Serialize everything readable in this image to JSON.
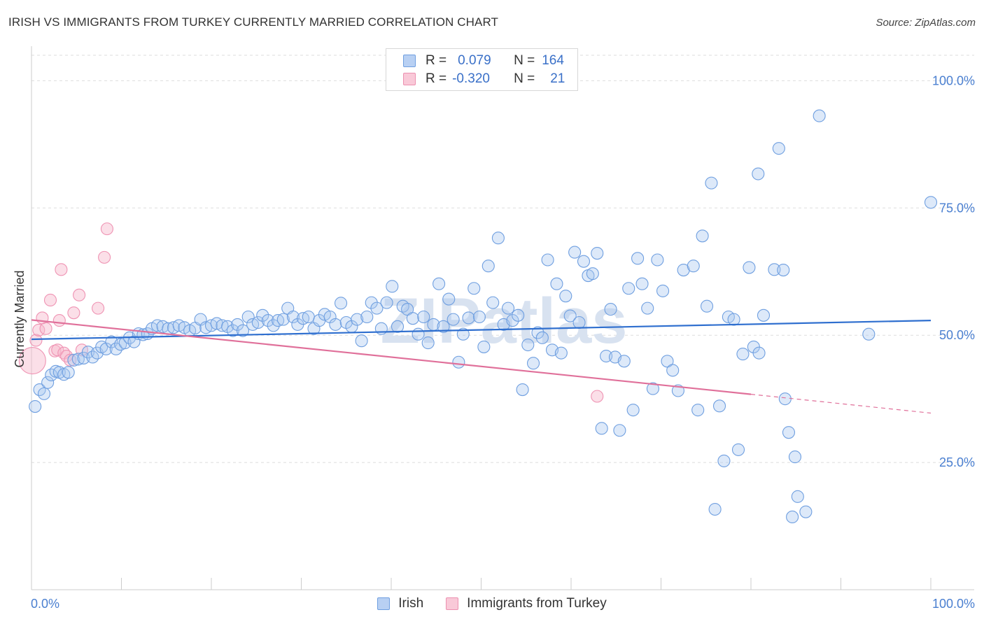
{
  "title": "IRISH VS IMMIGRANTS FROM TURKEY CURRENTLY MARRIED CORRELATION CHART",
  "source": "Source: ZipAtlas.com",
  "watermark": "ZIPatlas",
  "legend": {
    "r_label": "R =",
    "n_label": "N =",
    "irish": {
      "r": "0.079",
      "n": "164"
    },
    "turkey": {
      "r": "-0.320",
      "n": "21"
    }
  },
  "chart_data": {
    "type": "scatter",
    "title": "IRISH VS IMMIGRANTS FROM TURKEY CURRENTLY MARRIED CORRELATION CHART",
    "ylabel": "Currently Married",
    "xlabel": "",
    "xlim": [
      0,
      100
    ],
    "ylim": [
      0,
      105
    ],
    "x_tick_labels": [
      "0.0%",
      "100.0%"
    ],
    "y_ticks": [
      {
        "value": 25,
        "label": "25.0%"
      },
      {
        "value": 50,
        "label": "50.0%"
      },
      {
        "value": 75,
        "label": "75.0%"
      },
      {
        "value": 100,
        "label": "100.0%"
      }
    ],
    "grid": "horizontal dashed",
    "legend_position": "top-center",
    "colors": {
      "irish": "#8ab4e8",
      "irish_line": "#2f6fcf",
      "turkey": "#f4a8c0",
      "turkey_line": "#e0709a"
    },
    "series": [
      {
        "name": "Irish",
        "trend": {
          "x": [
            0,
            100
          ],
          "y": [
            49.2,
            52.9
          ]
        },
        "points": [
          [
            0.4,
            36
          ],
          [
            0.9,
            39.3
          ],
          [
            1.4,
            38.5
          ],
          [
            1.8,
            40.7
          ],
          [
            2.2,
            42.2
          ],
          [
            2.7,
            42.9
          ],
          [
            3.1,
            42.7
          ],
          [
            3.6,
            42.3
          ],
          [
            4.1,
            42.7
          ],
          [
            4.7,
            45.1
          ],
          [
            5.2,
            45.3
          ],
          [
            5.8,
            45.5
          ],
          [
            6.3,
            46.7
          ],
          [
            6.8,
            45.7
          ],
          [
            7.3,
            46.5
          ],
          [
            7.8,
            47.7
          ],
          [
            8.3,
            47.3
          ],
          [
            8.9,
            48.7
          ],
          [
            9.4,
            47.3
          ],
          [
            9.9,
            48.2
          ],
          [
            10.4,
            48.5
          ],
          [
            10.9,
            49.5
          ],
          [
            11.4,
            48.7
          ],
          [
            11.9,
            50.3
          ],
          [
            12.4,
            50.1
          ],
          [
            12.9,
            50.3
          ],
          [
            13.4,
            51.3
          ],
          [
            14,
            51.9
          ],
          [
            14.6,
            51.7
          ],
          [
            15.2,
            51.3
          ],
          [
            15.8,
            51.5
          ],
          [
            16.4,
            51.9
          ],
          [
            17,
            51.5
          ],
          [
            17.6,
            50.9
          ],
          [
            18.2,
            51.4
          ],
          [
            18.8,
            53.1
          ],
          [
            19.4,
            51.5
          ],
          [
            20,
            51.9
          ],
          [
            20.6,
            52.3
          ],
          [
            21.2,
            51.9
          ],
          [
            21.8,
            51.7
          ],
          [
            22.4,
            50.9
          ],
          [
            22.9,
            52.1
          ],
          [
            23.5,
            50.9
          ],
          [
            24.1,
            53.6
          ],
          [
            24.6,
            52.1
          ],
          [
            25.2,
            52.5
          ],
          [
            25.7,
            53.9
          ],
          [
            26.3,
            52.9
          ],
          [
            26.9,
            51.9
          ],
          [
            27.4,
            52.9
          ],
          [
            28,
            53.1
          ],
          [
            28.5,
            55.3
          ],
          [
            29.1,
            53.6
          ],
          [
            29.6,
            52.1
          ],
          [
            30.2,
            53.3
          ],
          [
            30.8,
            53.6
          ],
          [
            31.4,
            51.3
          ],
          [
            32,
            52.9
          ],
          [
            32.6,
            54.1
          ],
          [
            33.2,
            53.6
          ],
          [
            33.8,
            52.1
          ],
          [
            34.4,
            56.3
          ],
          [
            35,
            52.5
          ],
          [
            35.6,
            51.7
          ],
          [
            36.2,
            53.1
          ],
          [
            36.7,
            48.9
          ],
          [
            37.3,
            53.6
          ],
          [
            37.8,
            56.4
          ],
          [
            38.4,
            55.3
          ],
          [
            38.9,
            51.3
          ],
          [
            39.5,
            56.4
          ],
          [
            40.1,
            59.6
          ],
          [
            40.7,
            51.7
          ],
          [
            41.3,
            55.7
          ],
          [
            41.8,
            55.1
          ],
          [
            42.4,
            53.3
          ],
          [
            43,
            50.2
          ],
          [
            43.6,
            53.6
          ],
          [
            44.1,
            48.5
          ],
          [
            44.7,
            52.1
          ],
          [
            45.3,
            60.1
          ],
          [
            45.8,
            51.7
          ],
          [
            46.4,
            57.1
          ],
          [
            46.9,
            53.1
          ],
          [
            47.5,
            44.7
          ],
          [
            48,
            50.2
          ],
          [
            48.6,
            53.4
          ],
          [
            49.2,
            59.2
          ],
          [
            49.8,
            53.6
          ],
          [
            50.3,
            47.7
          ],
          [
            50.8,
            63.6
          ],
          [
            51.3,
            56.4
          ],
          [
            51.9,
            69.1
          ],
          [
            52.5,
            52.1
          ],
          [
            53,
            55.3
          ],
          [
            53.5,
            52.9
          ],
          [
            54.1,
            53.9
          ],
          [
            54.6,
            39.3
          ],
          [
            55.2,
            48.1
          ],
          [
            55.8,
            44.5
          ],
          [
            56.3,
            50.5
          ],
          [
            56.8,
            49.5
          ],
          [
            57.4,
            64.8
          ],
          [
            57.9,
            47.1
          ],
          [
            58.4,
            60.1
          ],
          [
            58.9,
            46.5
          ],
          [
            59.4,
            57.7
          ],
          [
            59.9,
            53.8
          ],
          [
            60.4,
            66.3
          ],
          [
            60.9,
            52.5
          ],
          [
            61.4,
            64.5
          ],
          [
            61.9,
            61.7
          ],
          [
            62.4,
            62.1
          ],
          [
            62.9,
            66.1
          ],
          [
            63.4,
            31.7
          ],
          [
            63.9,
            45.9
          ],
          [
            64.4,
            55.1
          ],
          [
            64.9,
            45.7
          ],
          [
            65.4,
            31.3
          ],
          [
            65.9,
            44.9
          ],
          [
            66.4,
            59.2
          ],
          [
            66.9,
            35.3
          ],
          [
            67.4,
            65.1
          ],
          [
            67.9,
            60.1
          ],
          [
            68.5,
            55.3
          ],
          [
            69.1,
            39.5
          ],
          [
            69.6,
            64.8
          ],
          [
            70.2,
            58.7
          ],
          [
            70.7,
            44.9
          ],
          [
            71.3,
            43.1
          ],
          [
            71.9,
            39.1
          ],
          [
            72.5,
            62.8
          ],
          [
            73.6,
            63.6
          ],
          [
            74.1,
            35.3
          ],
          [
            74.6,
            69.5
          ],
          [
            75.1,
            55.7
          ],
          [
            75.6,
            79.9
          ],
          [
            76,
            15.8
          ],
          [
            76.5,
            36.1
          ],
          [
            77,
            25.3
          ],
          [
            77.5,
            53.6
          ],
          [
            78.1,
            53.1
          ],
          [
            78.6,
            27.5
          ],
          [
            79.1,
            46.3
          ],
          [
            79.8,
            63.3
          ],
          [
            80.3,
            47.7
          ],
          [
            80.8,
            81.7
          ],
          [
            80.9,
            46.5
          ],
          [
            81.4,
            53.9
          ],
          [
            82.6,
            62.9
          ],
          [
            83.1,
            86.7
          ],
          [
            83.6,
            62.8
          ],
          [
            83.8,
            37.5
          ],
          [
            84.2,
            30.9
          ],
          [
            84.6,
            14.3
          ],
          [
            84.9,
            26.1
          ],
          [
            85.2,
            18.3
          ],
          [
            86.1,
            15.3
          ],
          [
            87.6,
            93.1
          ],
          [
            93.1,
            50.2
          ],
          [
            100,
            76.1
          ]
        ]
      },
      {
        "name": "Immigrants from Turkey",
        "trend": {
          "x": [
            0,
            80
          ],
          "y": [
            53.0,
            38.4
          ]
        },
        "trend_dashed": {
          "x": [
            80,
            100
          ],
          "y": [
            38.4,
            34.7
          ]
        },
        "points": [
          [
            0.1,
            45
          ],
          [
            0.5,
            49
          ],
          [
            0.8,
            51
          ],
          [
            1.2,
            53.4
          ],
          [
            1.6,
            51.3
          ],
          [
            2.1,
            56.9
          ],
          [
            2.6,
            46.9
          ],
          [
            2.9,
            47.1
          ],
          [
            3.1,
            52.9
          ],
          [
            3.3,
            62.9
          ],
          [
            3.6,
            46.5
          ],
          [
            3.9,
            45.9
          ],
          [
            4.3,
            45.1
          ],
          [
            4.7,
            54.4
          ],
          [
            5.3,
            57.9
          ],
          [
            5.6,
            47.1
          ],
          [
            7.4,
            55.3
          ],
          [
            8.1,
            65.3
          ],
          [
            8.4,
            70.9
          ],
          [
            62.9,
            38
          ]
        ]
      }
    ]
  }
}
